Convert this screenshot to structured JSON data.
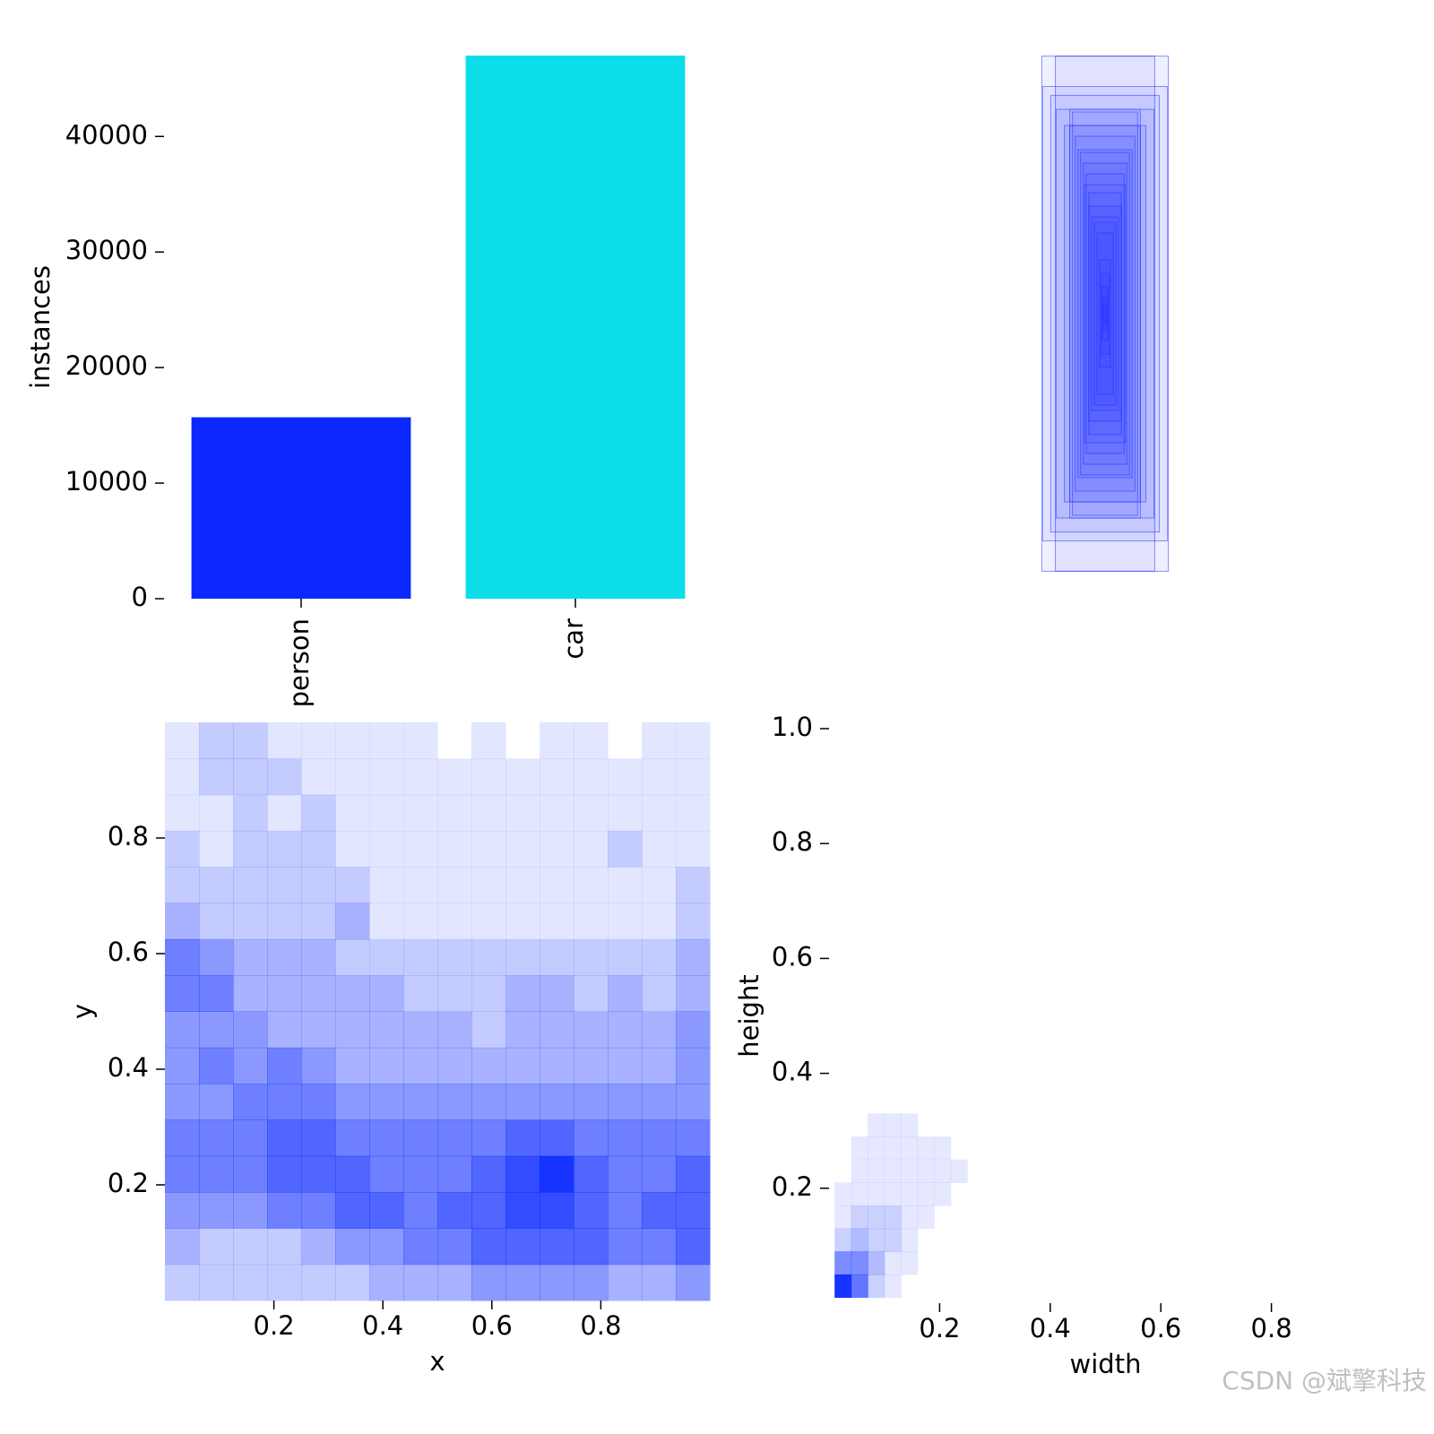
{
  "chart_data": [
    {
      "type": "bar",
      "categories": [
        "person",
        "car"
      ],
      "values": [
        15700,
        47000
      ],
      "colors": [
        "#0a28ff",
        "#0ddde8"
      ],
      "ylabel": "instances",
      "ylim": [
        0,
        47000
      ],
      "yticks": [
        0,
        10000,
        20000,
        30000,
        40000
      ]
    },
    {
      "type": "boxes",
      "color": "#1a2bff",
      "xlim": [
        0,
        1000
      ],
      "ylim": [
        0,
        1000
      ],
      "widths": [
        233,
        183,
        230,
        200,
        180,
        130,
        150,
        130,
        120,
        110,
        100,
        90,
        80,
        70,
        75,
        60,
        60,
        50,
        40,
        30,
        20,
        15,
        10,
        8,
        4
      ],
      "heights": [
        958,
        958,
        845,
        812,
        760,
        760,
        700,
        700,
        750,
        660,
        610,
        600,
        560,
        520,
        480,
        450,
        400,
        360,
        340,
        300,
        200,
        150,
        100,
        60,
        40
      ]
    },
    {
      "type": "heatmap",
      "color": "#0a28ff",
      "xlabel": "x",
      "ylabel": "y",
      "xlim": [
        0,
        1
      ],
      "ylim": [
        0,
        1
      ],
      "xticks": [
        0.2,
        0.4,
        0.6,
        0.8
      ],
      "yticks": [
        0.2,
        0.4,
        0.6,
        0.8
      ],
      "xbins": [
        0,
        0.0625,
        0.125,
        0.1875,
        0.25,
        0.3125,
        0.375,
        0.4375,
        0.5,
        0.5625,
        0.625,
        0.6875,
        0.75,
        0.8125,
        0.875,
        0.9375,
        1
      ],
      "ybins": [
        1,
        0.9375,
        0.875,
        0.8125,
        0.75,
        0.6875,
        0.625,
        0.5625,
        0.5,
        0.4375,
        0.375,
        0.3125,
        0.25,
        0.1875,
        0.125,
        0.0625,
        0
      ],
      "z": [
        [
          1,
          2,
          2,
          1,
          1,
          1,
          1,
          1,
          0,
          1,
          0,
          1,
          1,
          0,
          1,
          1
        ],
        [
          1,
          2,
          2,
          2,
          1,
          1,
          1,
          1,
          1,
          1,
          1,
          1,
          1,
          1,
          1,
          1
        ],
        [
          1,
          1,
          2,
          1,
          2,
          1,
          1,
          1,
          1,
          1,
          1,
          1,
          1,
          1,
          1,
          1
        ],
        [
          2,
          1,
          2,
          2,
          2,
          1,
          1,
          1,
          1,
          1,
          1,
          1,
          1,
          2,
          1,
          1
        ],
        [
          2,
          2,
          2,
          2,
          2,
          2,
          1,
          1,
          1,
          1,
          1,
          1,
          1,
          1,
          1,
          2
        ],
        [
          3,
          2,
          2,
          2,
          2,
          3,
          1,
          1,
          1,
          1,
          1,
          1,
          1,
          1,
          1,
          2
        ],
        [
          5,
          4,
          3,
          3,
          3,
          2,
          2,
          2,
          2,
          2,
          2,
          2,
          2,
          2,
          2,
          3
        ],
        [
          5,
          5,
          3,
          3,
          3,
          3,
          3,
          2,
          2,
          2,
          3,
          3,
          2,
          3,
          2,
          3
        ],
        [
          4,
          4,
          4,
          3,
          3,
          3,
          3,
          3,
          3,
          2,
          3,
          3,
          3,
          3,
          3,
          4
        ],
        [
          4,
          5,
          4,
          5,
          4,
          3,
          3,
          3,
          3,
          3,
          3,
          3,
          3,
          3,
          3,
          4
        ],
        [
          4,
          4,
          5,
          5,
          5,
          4,
          4,
          4,
          4,
          4,
          4,
          4,
          4,
          4,
          4,
          4
        ],
        [
          5,
          5,
          5,
          6,
          6,
          5,
          5,
          5,
          5,
          5,
          6,
          6,
          5,
          5,
          5,
          5
        ],
        [
          5,
          5,
          5,
          6,
          6,
          6,
          5,
          5,
          5,
          6,
          7,
          8,
          6,
          5,
          5,
          6
        ],
        [
          4,
          4,
          4,
          5,
          5,
          6,
          6,
          5,
          6,
          6,
          7,
          7,
          6,
          5,
          6,
          6
        ],
        [
          3,
          2,
          2,
          2,
          3,
          4,
          4,
          5,
          5,
          6,
          6,
          6,
          6,
          5,
          5,
          6
        ],
        [
          2,
          2,
          2,
          2,
          2,
          2,
          3,
          3,
          3,
          4,
          4,
          4,
          4,
          3,
          3,
          4
        ]
      ]
    },
    {
      "type": "heatmap",
      "color": "#0a28ff",
      "xlabel": "width",
      "ylabel": "height",
      "xlim": [
        0,
        1
      ],
      "ylim": [
        0,
        1
      ],
      "xticks": [
        0.2,
        0.4,
        0.6,
        0.8
      ],
      "yticks": [
        0.2,
        0.4,
        0.6,
        0.8,
        {
          "value": 1,
          "label": "1.0"
        }
      ],
      "xbins": [
        0.01,
        0.04,
        0.07,
        0.1,
        0.13,
        0.16,
        0.19,
        0.22,
        0.25,
        0.28,
        0.31
      ],
      "ybins": [
        0.01,
        0.05,
        0.09,
        0.13,
        0.17,
        0.21,
        0.25,
        0.29,
        0.33,
        0.37,
        0.41
      ],
      "z": [
        [
          9,
          6,
          2,
          1,
          0,
          0,
          0,
          0,
          0,
          0
        ],
        [
          5,
          5,
          3,
          1,
          1,
          0,
          0,
          0,
          0,
          0
        ],
        [
          2,
          3,
          2,
          2,
          1,
          0,
          0,
          0,
          0,
          0
        ],
        [
          1,
          2,
          2,
          2,
          1,
          1,
          0,
          0,
          0,
          0
        ],
        [
          1,
          1,
          1,
          1,
          1,
          1,
          1,
          0,
          0,
          0
        ],
        [
          0,
          1,
          1,
          1,
          1,
          1,
          1,
          1,
          0,
          0
        ],
        [
          0,
          1,
          1,
          1,
          1,
          1,
          1,
          0,
          0,
          0
        ],
        [
          0,
          0,
          1,
          1,
          1,
          0,
          0,
          0,
          0,
          0
        ],
        [
          0,
          0,
          0,
          0,
          0,
          0,
          0,
          0,
          0,
          0
        ],
        [
          0,
          0,
          0,
          0,
          0,
          0,
          0,
          0,
          0,
          0
        ]
      ]
    }
  ],
  "watermark": "CSDN @斌擎科技"
}
